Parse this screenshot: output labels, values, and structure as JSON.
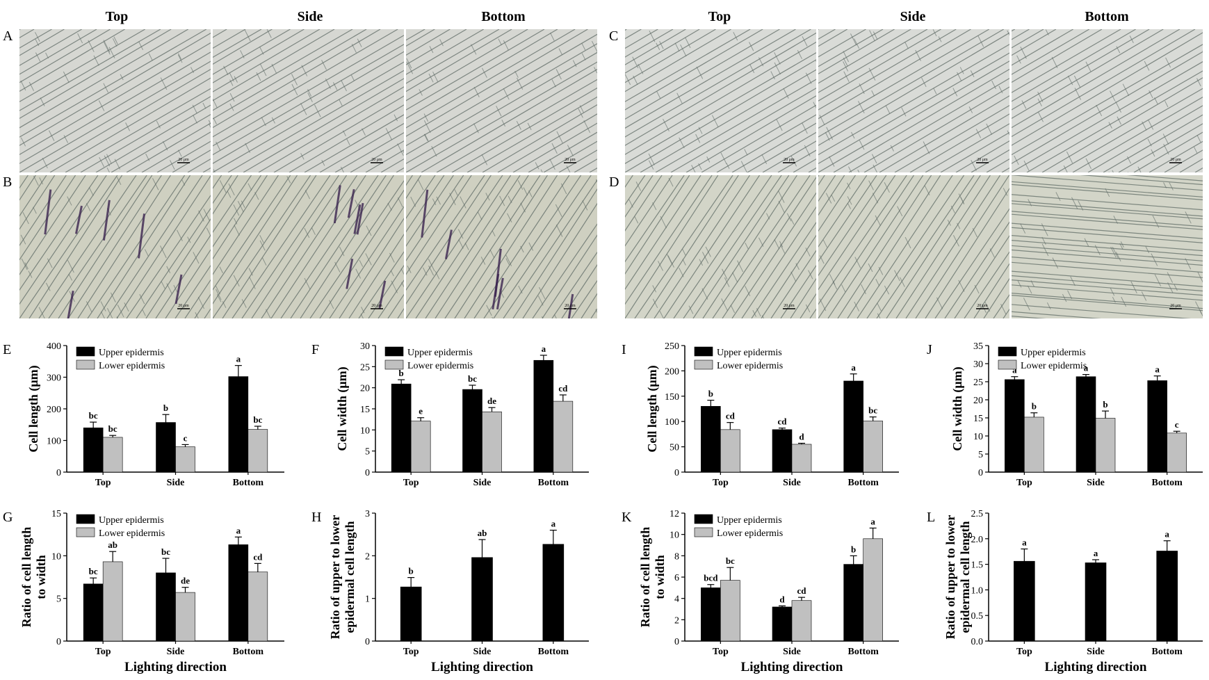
{
  "figure": {
    "column_headers": [
      "Top",
      "Side",
      "Bottom",
      "Top",
      "Side",
      "Bottom"
    ],
    "micro_panel_letters": [
      "A",
      "B",
      "C",
      "D"
    ],
    "scale_bar_label": "20 μm",
    "legend_labels": [
      "Upper epidermis",
      "Lower epidermis"
    ],
    "x_axis_label": "Lighting direction",
    "colors": {
      "upper": "#000000",
      "lower": "#c0c0c0",
      "tile_a": "#d6d7d2",
      "tile_b": "#cfd0c1",
      "tile_c": "#d9dbd7",
      "tile_d": "#d3d5c8",
      "cell_wall": "#5f6b66",
      "stain": "#3b2450"
    }
  },
  "chart_data": [
    {
      "panel": "E",
      "type": "bar",
      "categories": [
        "Top",
        "Side",
        "Bottom"
      ],
      "ylabel": "Cell length (μm)",
      "xlabel": "",
      "ylim": [
        0,
        400
      ],
      "yticks": [
        0,
        100,
        200,
        300,
        400
      ],
      "series": [
        {
          "name": "Upper epidermis",
          "values": [
            140,
            157,
            302
          ],
          "errors": [
            18,
            25,
            35
          ],
          "letters": [
            "bc",
            "b",
            "a"
          ]
        },
        {
          "name": "Lower epidermis",
          "values": [
            110,
            80,
            135
          ],
          "errors": [
            6,
            7,
            10
          ],
          "letters": [
            "bc",
            "c",
            "bc"
          ]
        }
      ],
      "legend": "top-left"
    },
    {
      "panel": "F",
      "type": "bar",
      "categories": [
        "Top",
        "Side",
        "Bottom"
      ],
      "ylabel": "Cell width (μm)",
      "xlabel": "",
      "ylim": [
        0,
        30
      ],
      "yticks": [
        0,
        5,
        10,
        15,
        20,
        25,
        30
      ],
      "series": [
        {
          "name": "Upper epidermis",
          "values": [
            20.9,
            19.6,
            26.5
          ],
          "errors": [
            1.0,
            1.0,
            1.2
          ],
          "letters": [
            "b",
            "bc",
            "a"
          ]
        },
        {
          "name": "Lower epidermis",
          "values": [
            12.1,
            14.3,
            16.8
          ],
          "errors": [
            0.8,
            1.0,
            1.5
          ],
          "letters": [
            "e",
            "de",
            "cd"
          ]
        }
      ],
      "legend": "top-left"
    },
    {
      "panel": "I",
      "type": "bar",
      "categories": [
        "Top",
        "Side",
        "Bottom"
      ],
      "ylabel": "Cell length (μm)",
      "xlabel": "",
      "ylim": [
        0,
        250
      ],
      "yticks": [
        0,
        50,
        100,
        150,
        200,
        250
      ],
      "series": [
        {
          "name": "Upper epidermis",
          "values": [
            130,
            84,
            180
          ],
          "errors": [
            12,
            3,
            14
          ],
          "letters": [
            "b",
            "cd",
            "a"
          ]
        },
        {
          "name": "Lower epidermis",
          "values": [
            84,
            55,
            101
          ],
          "errors": [
            14,
            2,
            8
          ],
          "letters": [
            "cd",
            "d",
            "bc"
          ]
        }
      ],
      "legend": "top-left"
    },
    {
      "panel": "J",
      "type": "bar",
      "categories": [
        "Top",
        "Side",
        "Bottom"
      ],
      "ylabel": "Cell width (μm)",
      "xlabel": "",
      "ylim": [
        0,
        35
      ],
      "yticks": [
        0,
        5,
        10,
        15,
        20,
        25,
        30,
        35
      ],
      "series": [
        {
          "name": "Upper epidermis",
          "values": [
            25.6,
            26.4,
            25.3
          ],
          "errors": [
            0.8,
            0.6,
            1.3
          ],
          "letters": [
            "a",
            "a",
            "a"
          ]
        },
        {
          "name": "Lower epidermis",
          "values": [
            15.2,
            14.9,
            10.8
          ],
          "errors": [
            1.2,
            2.0,
            0.5
          ],
          "letters": [
            "b",
            "b",
            "c"
          ]
        }
      ],
      "legend": "top-left"
    },
    {
      "panel": "G",
      "type": "bar",
      "categories": [
        "Top",
        "Side",
        "Bottom"
      ],
      "ylabel": "Ratio of cell length to width",
      "xlabel": "Lighting direction",
      "ylim": [
        0,
        15
      ],
      "yticks": [
        0,
        5,
        10,
        15
      ],
      "series": [
        {
          "name": "Upper epidermis",
          "values": [
            6.7,
            8.0,
            11.3
          ],
          "errors": [
            0.7,
            1.7,
            0.9
          ],
          "letters": [
            "bc",
            "bc",
            "a"
          ]
        },
        {
          "name": "Lower epidermis",
          "values": [
            9.3,
            5.7,
            8.1
          ],
          "errors": [
            1.2,
            0.6,
            1.0
          ],
          "letters": [
            "ab",
            "de",
            "cd"
          ]
        }
      ],
      "legend": "top-left"
    },
    {
      "panel": "H",
      "type": "bar",
      "categories": [
        "Top",
        "Side",
        "Bottom"
      ],
      "ylabel": "Ratio of upper to lower epidermal cell length",
      "xlabel": "Lighting direction",
      "ylim": [
        0,
        3
      ],
      "yticks": [
        0,
        1,
        2,
        3
      ],
      "series": [
        {
          "values": [
            1.27,
            1.96,
            2.27
          ],
          "errors": [
            0.22,
            0.42,
            0.33
          ],
          "letters": [
            "b",
            "ab",
            "a"
          ]
        }
      ]
    },
    {
      "panel": "K",
      "type": "bar",
      "categories": [
        "Top",
        "Side",
        "Bottom"
      ],
      "ylabel": "Ratio of cell length to width",
      "xlabel": "Lighting direction",
      "ylim": [
        0,
        12
      ],
      "yticks": [
        0,
        2,
        4,
        6,
        8,
        10,
        12
      ],
      "series": [
        {
          "name": "Upper epidermis",
          "values": [
            5.0,
            3.2,
            7.2
          ],
          "errors": [
            0.3,
            0.1,
            0.8
          ],
          "letters": [
            "bcd",
            "d",
            "b"
          ]
        },
        {
          "name": "Lower epidermis",
          "values": [
            5.7,
            3.8,
            9.6
          ],
          "errors": [
            1.2,
            0.3,
            1.0
          ],
          "letters": [
            "bc",
            "cd",
            "a"
          ]
        }
      ],
      "legend": "top-left"
    },
    {
      "panel": "L",
      "type": "bar",
      "categories": [
        "Top",
        "Side",
        "Bottom"
      ],
      "ylabel": "Ratio of upper to lower epidermal cell length",
      "xlabel": "Lighting direction",
      "ylim": [
        0,
        2.5
      ],
      "yticks": [
        "0.0",
        "0.5",
        "1.0",
        "1.5",
        "2.0",
        "2.5"
      ],
      "series": [
        {
          "values": [
            1.56,
            1.53,
            1.76
          ],
          "errors": [
            0.24,
            0.06,
            0.2
          ],
          "letters": [
            "a",
            "a",
            "a"
          ]
        }
      ]
    }
  ]
}
